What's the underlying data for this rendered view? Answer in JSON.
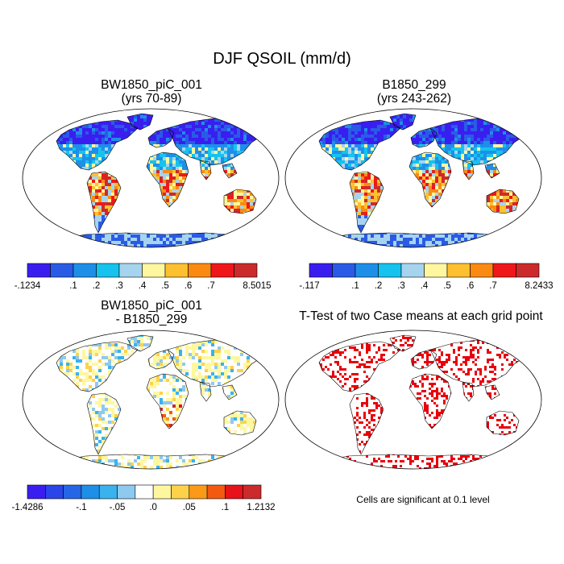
{
  "figure": {
    "title": "DJF QSOIL (mm/d)",
    "footnote": "Cells are significant at 0.1 level"
  },
  "chart_data": [
    {
      "type": "heatmap",
      "map": "world-robinson",
      "title": "BW1850_piC_001",
      "subtitle": "(yrs 70-89)",
      "colorbar": {
        "colors": [
          "#3a1ef0",
          "#2a5be6",
          "#1e8fe8",
          "#15c3ee",
          "#a6d4ef",
          "#fff7a0",
          "#fdc030",
          "#fb8a12",
          "#f0171a",
          "#cc2b2b"
        ],
        "tick_labels": [
          "-.1234",
          "",
          ".1",
          ".2",
          ".3",
          ".4",
          ".5",
          ".6",
          ".7",
          "",
          "8.5015"
        ],
        "min": -0.1234,
        "max": 8.5015
      }
    },
    {
      "type": "heatmap",
      "map": "world-robinson",
      "title": "B1850_299",
      "subtitle": "(yrs 243-262)",
      "colorbar": {
        "colors": [
          "#3a1ef0",
          "#2a5be6",
          "#1e8fe8",
          "#15c3ee",
          "#a6d4ef",
          "#fff7a0",
          "#fdc030",
          "#fb8a12",
          "#f0171a",
          "#cc2b2b"
        ],
        "tick_labels": [
          "-.117",
          "",
          ".1",
          ".2",
          ".3",
          ".4",
          ".5",
          ".6",
          ".7",
          "",
          "8.2433"
        ],
        "min": -0.117,
        "max": 8.2433
      }
    },
    {
      "type": "heatmap",
      "map": "world-robinson",
      "title": "BW1850_piC_001",
      "subtitle": "- B1850_299",
      "colorbar": {
        "colors": [
          "#3a1ef0",
          "#2a45e8",
          "#2566e6",
          "#1e8fe8",
          "#39b2ee",
          "#8ec9ef",
          "#ffffff",
          "#fff7a0",
          "#fdd24a",
          "#fb9a18",
          "#f35a10",
          "#e8121a",
          "#cc2b2b"
        ],
        "tick_labels": [
          "-1.4286",
          "",
          "",
          "-.1",
          "",
          "-.05",
          "",
          ".0",
          "",
          ".05",
          "",
          ".1",
          "",
          "1.2132"
        ],
        "min": -1.4286,
        "max": 1.2132
      }
    },
    {
      "type": "heatmap",
      "map": "world-robinson",
      "title": "T-Test of two Case means at each grid point",
      "significance_color": "#e8000b",
      "significance_level": 0.1
    }
  ]
}
